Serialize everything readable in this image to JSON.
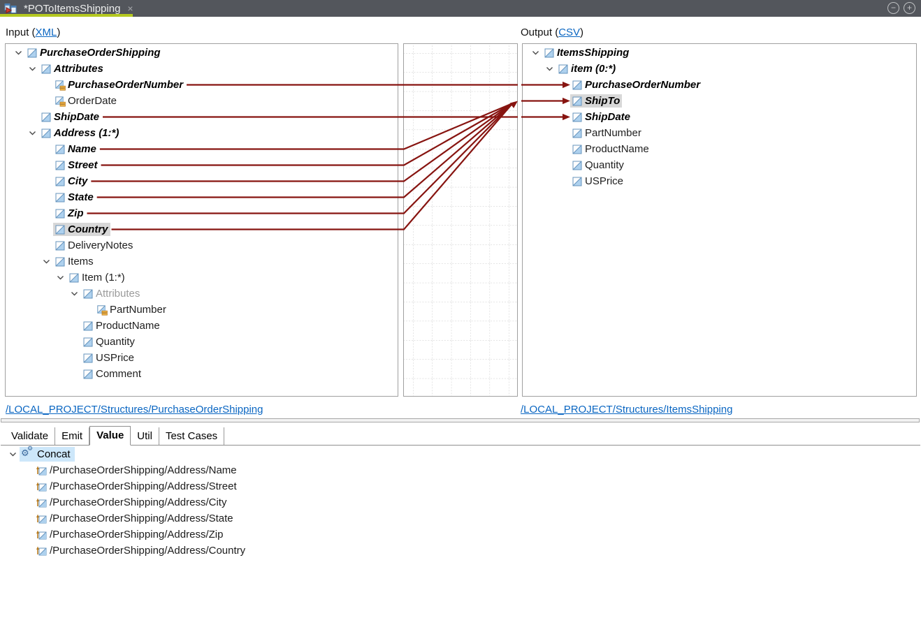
{
  "window": {
    "tab_title": "*POToItemsShipping",
    "close_glyph": "×",
    "minimize_glyph": "−",
    "maximize_glyph": "+"
  },
  "headers": {
    "input_prefix": "Input (",
    "input_link": "XML",
    "input_suffix": ")",
    "output_prefix": "Output (",
    "output_link": "CSV",
    "output_suffix": ")"
  },
  "input_tree": {
    "rows": [
      {
        "label": "PurchaseOrderShipping",
        "level": 0,
        "chevron": true,
        "icon": "element",
        "style": "strong"
      },
      {
        "label": "Attributes",
        "level": 1,
        "chevron": true,
        "icon": "element",
        "style": "strong"
      },
      {
        "label": "PurchaseOrderNumber",
        "level": 2,
        "chevron": false,
        "icon": "attribute",
        "style": "strong"
      },
      {
        "label": "OrderDate",
        "level": 2,
        "chevron": false,
        "icon": "attribute",
        "style": "normal"
      },
      {
        "label": "ShipDate",
        "level": 1,
        "chevron": false,
        "icon": "element",
        "style": "strong"
      },
      {
        "label": "Address (1:*)",
        "level": 1,
        "chevron": true,
        "icon": "element",
        "style": "strong"
      },
      {
        "label": "Name",
        "level": 2,
        "chevron": false,
        "icon": "element",
        "style": "strong"
      },
      {
        "label": "Street",
        "level": 2,
        "chevron": false,
        "icon": "element",
        "style": "strong"
      },
      {
        "label": "City",
        "level": 2,
        "chevron": false,
        "icon": "element",
        "style": "strong"
      },
      {
        "label": "State",
        "level": 2,
        "chevron": false,
        "icon": "element",
        "style": "strong"
      },
      {
        "label": "Zip",
        "level": 2,
        "chevron": false,
        "icon": "element",
        "style": "strong"
      },
      {
        "label": "Country",
        "level": 2,
        "chevron": false,
        "icon": "element",
        "style": "strong",
        "selected": true
      },
      {
        "label": "DeliveryNotes",
        "level": 2,
        "chevron": false,
        "icon": "element",
        "style": "normal"
      },
      {
        "label": "Items",
        "level": 2,
        "chevron": true,
        "icon": "element",
        "style": "normal"
      },
      {
        "label": "Item (1:*)",
        "level": 3,
        "chevron": true,
        "icon": "element",
        "style": "normal"
      },
      {
        "label": "Attributes",
        "level": 4,
        "chevron": true,
        "icon": "element",
        "style": "dim"
      },
      {
        "label": "PartNumber",
        "level": 5,
        "chevron": false,
        "icon": "attribute",
        "style": "normal"
      },
      {
        "label": "ProductName",
        "level": 4,
        "chevron": false,
        "icon": "element",
        "style": "normal"
      },
      {
        "label": "Quantity",
        "level": 4,
        "chevron": false,
        "icon": "element",
        "style": "normal"
      },
      {
        "label": "USPrice",
        "level": 4,
        "chevron": false,
        "icon": "element",
        "style": "normal"
      },
      {
        "label": "Comment",
        "level": 4,
        "chevron": false,
        "icon": "element",
        "style": "normal"
      }
    ]
  },
  "output_tree": {
    "rows": [
      {
        "label": "ItemsShipping",
        "level": 0,
        "chevron": true,
        "icon": "element",
        "style": "strong"
      },
      {
        "label": "item (0:*)",
        "level": 1,
        "chevron": true,
        "icon": "element",
        "style": "strong"
      },
      {
        "label": "PurchaseOrderNumber",
        "level": 2,
        "chevron": false,
        "icon": "element",
        "style": "strong",
        "arrow": true
      },
      {
        "label": "ShipTo",
        "level": 2,
        "chevron": false,
        "icon": "element",
        "style": "strong",
        "arrow": true,
        "selected": true
      },
      {
        "label": "ShipDate",
        "level": 2,
        "chevron": false,
        "icon": "element",
        "style": "strong",
        "arrow": true
      },
      {
        "label": "PartNumber",
        "level": 2,
        "chevron": false,
        "icon": "element",
        "style": "normal"
      },
      {
        "label": "ProductName",
        "level": 2,
        "chevron": false,
        "icon": "element",
        "style": "normal"
      },
      {
        "label": "Quantity",
        "level": 2,
        "chevron": false,
        "icon": "element",
        "style": "normal"
      },
      {
        "label": "USPrice",
        "level": 2,
        "chevron": false,
        "icon": "element",
        "style": "normal"
      }
    ]
  },
  "mappings": {
    "direct": [
      {
        "from": "PurchaseOrderNumber",
        "from_index": 2,
        "to": "PurchaseOrderNumber",
        "to_index": 2
      },
      {
        "from": "ShipDate",
        "from_index": 4,
        "to": "ShipDate",
        "to_index": 4
      }
    ],
    "concat": {
      "function": "Concat",
      "sources": [
        "Name",
        "Street",
        "City",
        "State",
        "Zip",
        "Country"
      ],
      "source_indices": [
        6,
        7,
        8,
        9,
        10,
        11
      ],
      "target": "ShipTo",
      "target_index": 3
    }
  },
  "footer_links": {
    "input": "/LOCAL_PROJECT/Structures/PurchaseOrderShipping",
    "output": "/LOCAL_PROJECT/Structures/ItemsShipping"
  },
  "bottom_tabs": [
    {
      "label": "Validate",
      "active": false
    },
    {
      "label": "Emit",
      "active": false
    },
    {
      "label": "Value",
      "active": true
    },
    {
      "label": "Util",
      "active": false
    },
    {
      "label": "Test Cases",
      "active": false
    }
  ],
  "function_panel": {
    "name": "Concat",
    "gear_glyph": "⚙",
    "args": [
      "/PurchaseOrderShipping/Address/Name",
      "/PurchaseOrderShipping/Address/Street",
      "/PurchaseOrderShipping/Address/City",
      "/PurchaseOrderShipping/Address/State",
      "/PurchaseOrderShipping/Address/Zip",
      "/PurchaseOrderShipping/Address/Country"
    ]
  },
  "colors": {
    "mapping_line": "#871410",
    "tab_accent_green": "#b4c820",
    "tabbar_bg": "#53565c",
    "link_blue": "#0a66c2",
    "selection_gray": "#d8d8d8",
    "function_highlight": "#cde7fa"
  }
}
